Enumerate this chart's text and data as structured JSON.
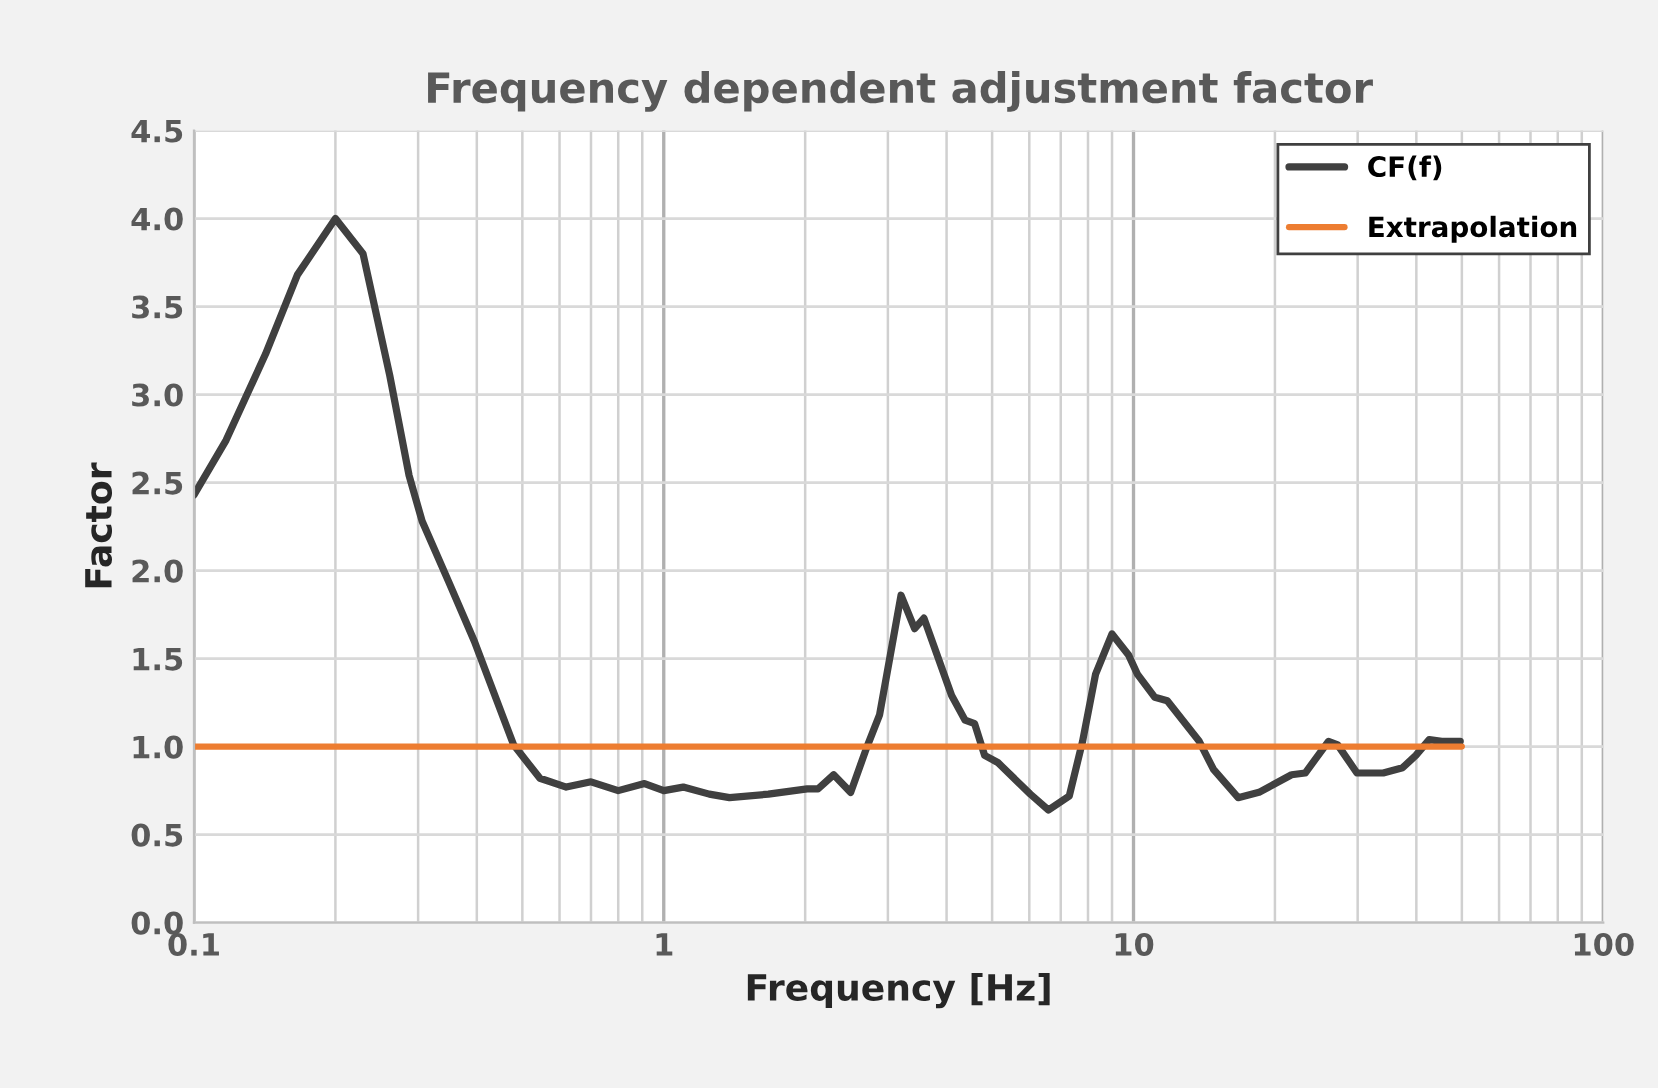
{
  "chart_data": {
    "type": "line",
    "title": "Frequency dependent adjustment factor",
    "xlabel": "Frequency [Hz]",
    "ylabel": "Factor",
    "log": "x",
    "xlim": [
      0.1,
      100
    ],
    "xticks": [
      0.1,
      1,
      10,
      100
    ],
    "ylim": [
      0,
      4.5
    ],
    "yticks": [
      {
        "value": 0,
        "label": "0.0"
      },
      {
        "value": 0.5,
        "label": "0.5"
      },
      {
        "value": 1,
        "label": "1.0"
      },
      {
        "value": 1.5,
        "label": "1.5"
      },
      {
        "value": 2,
        "label": "2.0"
      },
      {
        "value": 2.5,
        "label": "2.5"
      },
      {
        "value": 3,
        "label": "3.0"
      },
      {
        "value": 3.5,
        "label": "3.5"
      },
      {
        "value": 4,
        "label": "4.0"
      },
      {
        "value": 4.5,
        "label": "4.5"
      }
    ],
    "grid": true,
    "legend": "top right",
    "marker": "none",
    "line_style": "solid",
    "series": [
      {
        "name": "CF(f)",
        "color": "#404040",
        "x": [
          0.1,
          0.117,
          0.142,
          0.166,
          0.2,
          0.229,
          0.261,
          0.287,
          0.306,
          0.348,
          0.395,
          0.479,
          0.545,
          0.62,
          0.7,
          0.8,
          0.91,
          1.0,
          1.1,
          1.25,
          1.38,
          1.67,
          2.02,
          2.13,
          2.3,
          2.5,
          2.7,
          2.88,
          3.2,
          3.42,
          3.58,
          4.1,
          4.38,
          4.59,
          4.82,
          5.14,
          6.03,
          6.59,
          7.3,
          7.79,
          8.3,
          9.0,
          9.76,
          10.2,
          11.1,
          11.8,
          13.8,
          14.8,
          16.7,
          18.5,
          21.7,
          23.2,
          26.0,
          27.2,
          29.9,
          34.0,
          37.4,
          39.9,
          42.6,
          45.3,
          49.6
        ],
        "values": [
          2.43,
          2.74,
          3.23,
          3.68,
          4.0,
          3.8,
          3.11,
          2.54,
          2.28,
          1.94,
          1.6,
          1.01,
          0.82,
          0.77,
          0.8,
          0.75,
          0.79,
          0.75,
          0.77,
          0.73,
          0.71,
          0.73,
          0.76,
          0.76,
          0.84,
          0.74,
          0.99,
          1.18,
          1.86,
          1.67,
          1.73,
          1.29,
          1.15,
          1.13,
          0.95,
          0.91,
          0.73,
          0.64,
          0.72,
          1.03,
          1.41,
          1.64,
          1.52,
          1.41,
          1.28,
          1.26,
          1.03,
          0.87,
          0.71,
          0.74,
          0.84,
          0.85,
          1.03,
          1.01,
          0.85,
          0.85,
          0.88,
          0.95,
          1.04,
          1.03,
          1.03
        ]
      },
      {
        "name": "Extrapolation",
        "color": "#ed7d31",
        "x": [
          0.1,
          50
        ],
        "values": [
          1,
          1
        ]
      }
    ]
  }
}
